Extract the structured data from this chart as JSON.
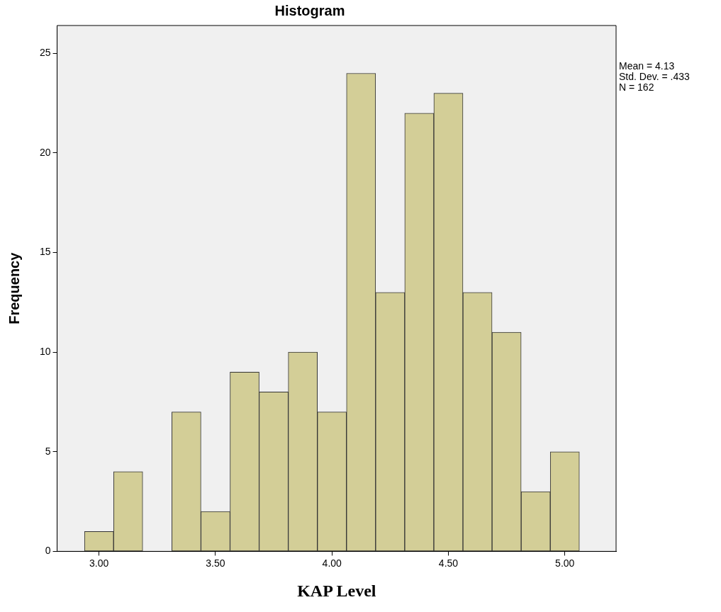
{
  "chart_data": {
    "type": "histogram",
    "title": "Histogram",
    "xlabel": "KAP Level",
    "ylabel": "Frequency",
    "bins": [
      2.9375,
      3.0625,
      3.1875,
      3.3125,
      3.4375,
      3.5625,
      3.6875,
      3.8125,
      3.9375,
      4.0625,
      4.1875,
      4.3125,
      4.4375,
      4.5625,
      4.6875,
      4.8125,
      4.9375,
      5.0625
    ],
    "values": [
      1,
      4,
      0,
      7,
      2,
      9,
      8,
      10,
      7,
      24,
      13,
      22,
      23,
      13,
      11,
      3,
      5
    ],
    "color": "#d3ce97",
    "xlim": [
      2.82,
      5.22
    ],
    "xticks": [
      {
        "value": 3,
        "label": "3.00"
      },
      {
        "value": 3.5,
        "label": "3.50"
      },
      {
        "value": 4,
        "label": "4.00"
      },
      {
        "value": 4.5,
        "label": "4.50"
      },
      {
        "value": 5,
        "label": "5.00"
      }
    ],
    "ylim": [
      0,
      26.4
    ],
    "yticks": [
      0,
      5,
      10,
      15,
      20,
      25
    ],
    "grid": false,
    "legend": false,
    "annotations": [
      "Mean = 4.13",
      "Std. Dev. = .433",
      "N = 162"
    ]
  }
}
